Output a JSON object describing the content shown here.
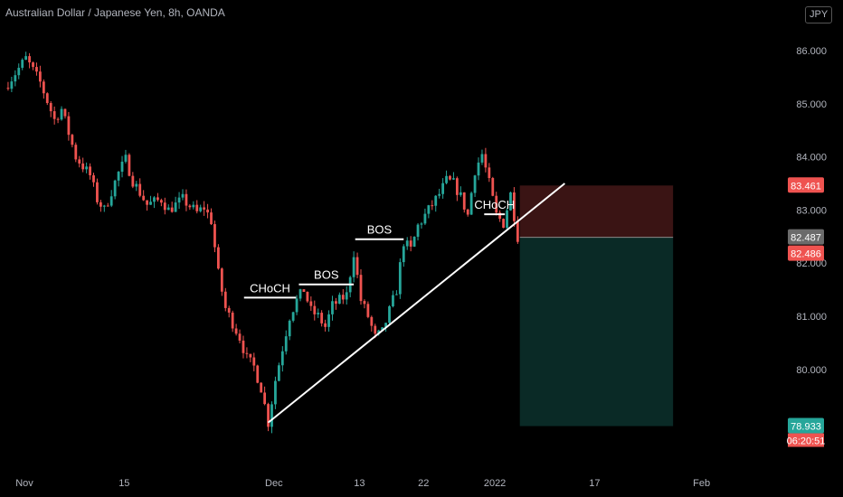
{
  "header": {
    "title": "Australian Dollar / Japanese Yen, 8h, OANDA",
    "currency": "JPY"
  },
  "colors": {
    "background": "#000000",
    "up": "#26a69a",
    "down": "#ef5350",
    "text": "#b2b5be",
    "annotation": "#ffffff",
    "stop_zone": "#3a1414",
    "target_zone": "#0a2a26"
  },
  "chart_data": {
    "type": "candlestick",
    "ylim": [
      78.6,
      86.5
    ],
    "y_ticks": [
      {
        "value": 86,
        "label": "86.000"
      },
      {
        "value": 85,
        "label": "85.000"
      },
      {
        "value": 84,
        "label": "84.000"
      },
      {
        "value": 83,
        "label": "83.000"
      },
      {
        "value": 82,
        "label": "82.000"
      },
      {
        "value": 81,
        "label": "81.000"
      },
      {
        "value": 80,
        "label": "80.000"
      }
    ],
    "x_ticks": [
      {
        "x": 0,
        "label": "Nov"
      },
      {
        "x": 14,
        "label": "15"
      },
      {
        "x": 35,
        "label": "Dec"
      },
      {
        "x": 47,
        "label": "13"
      },
      {
        "x": 56,
        "label": "22"
      },
      {
        "x": 66,
        "label": "2022"
      },
      {
        "x": 80,
        "label": "17"
      },
      {
        "x": 95,
        "label": "Feb"
      }
    ],
    "path": [
      [
        0,
        85.3
      ],
      [
        3,
        85.85
      ],
      [
        5,
        85.4
      ],
      [
        7,
        84.7
      ],
      [
        8,
        84.9
      ],
      [
        10,
        84.0
      ],
      [
        12,
        83.65
      ],
      [
        13,
        83.2
      ],
      [
        14,
        83.0
      ],
      [
        16,
        83.7
      ],
      [
        17,
        83.95
      ],
      [
        18,
        83.55
      ],
      [
        20,
        83.1
      ],
      [
        22,
        83.2
      ],
      [
        23,
        83.0
      ],
      [
        25,
        83.2
      ],
      [
        27,
        82.95
      ],
      [
        28,
        83.05
      ],
      [
        29,
        82.8
      ],
      [
        30,
        81.8
      ],
      [
        31,
        81.15
      ],
      [
        33,
        80.6
      ],
      [
        34,
        80.2
      ],
      [
        35,
        80.05
      ],
      [
        36,
        79.65
      ],
      [
        37,
        79.0
      ],
      [
        38,
        79.8
      ],
      [
        39,
        80.4
      ],
      [
        40,
        81.0
      ],
      [
        41,
        81.3
      ],
      [
        42,
        81.5
      ],
      [
        43,
        81.1
      ],
      [
        44,
        81.0
      ],
      [
        45,
        80.8
      ],
      [
        46,
        81.2
      ],
      [
        48,
        81.4
      ],
      [
        49,
        82.2
      ],
      [
        50,
        81.3
      ],
      [
        51,
        81.0
      ],
      [
        52,
        80.6
      ],
      [
        53,
        80.7
      ],
      [
        55,
        81.5
      ],
      [
        56,
        82.4
      ],
      [
        57,
        82.25
      ],
      [
        58,
        82.7
      ],
      [
        59,
        82.9
      ],
      [
        60,
        83.1
      ],
      [
        61,
        83.3
      ],
      [
        62,
        83.55
      ],
      [
        63,
        83.5
      ],
      [
        64,
        83.25
      ],
      [
        65,
        82.9
      ],
      [
        66,
        83.75
      ],
      [
        67,
        84.05
      ],
      [
        68,
        83.5
      ],
      [
        69,
        82.9
      ],
      [
        70,
        82.75
      ],
      [
        71,
        83.3
      ],
      [
        72,
        82.5
      ]
    ],
    "annotations": [
      {
        "text": "CHoCH",
        "x1": 33.6,
        "x2": 40.9,
        "y": 81.35
      },
      {
        "text": "BOS",
        "x1": 41.3,
        "x2": 49.0,
        "y": 81.6
      },
      {
        "text": "BOS",
        "x1": 49.2,
        "x2": 56.0,
        "y": 82.45
      },
      {
        "text": "CHoCH",
        "x1": 67.3,
        "x2": 70.2,
        "y": 82.92
      }
    ],
    "trendline": {
      "x1": 37.0,
      "y1": 79.0,
      "x2": 78.6,
      "y2": 83.5
    },
    "position": {
      "x1": 72.3,
      "x2": 93.8,
      "stop": 83.461,
      "entry": 82.487,
      "target": 78.933
    },
    "price_labels": [
      {
        "value": 83.461,
        "label": "83.461",
        "color": "#ef5350"
      },
      {
        "value": 82.487,
        "label": "82.487",
        "color": "#6b6b6b"
      },
      {
        "value": 82.486,
        "label": "82.486",
        "color": "#ef5350"
      },
      {
        "value": 78.933,
        "label": "78.933",
        "color": "#26a69a"
      }
    ],
    "countdown": "06:20:51"
  }
}
